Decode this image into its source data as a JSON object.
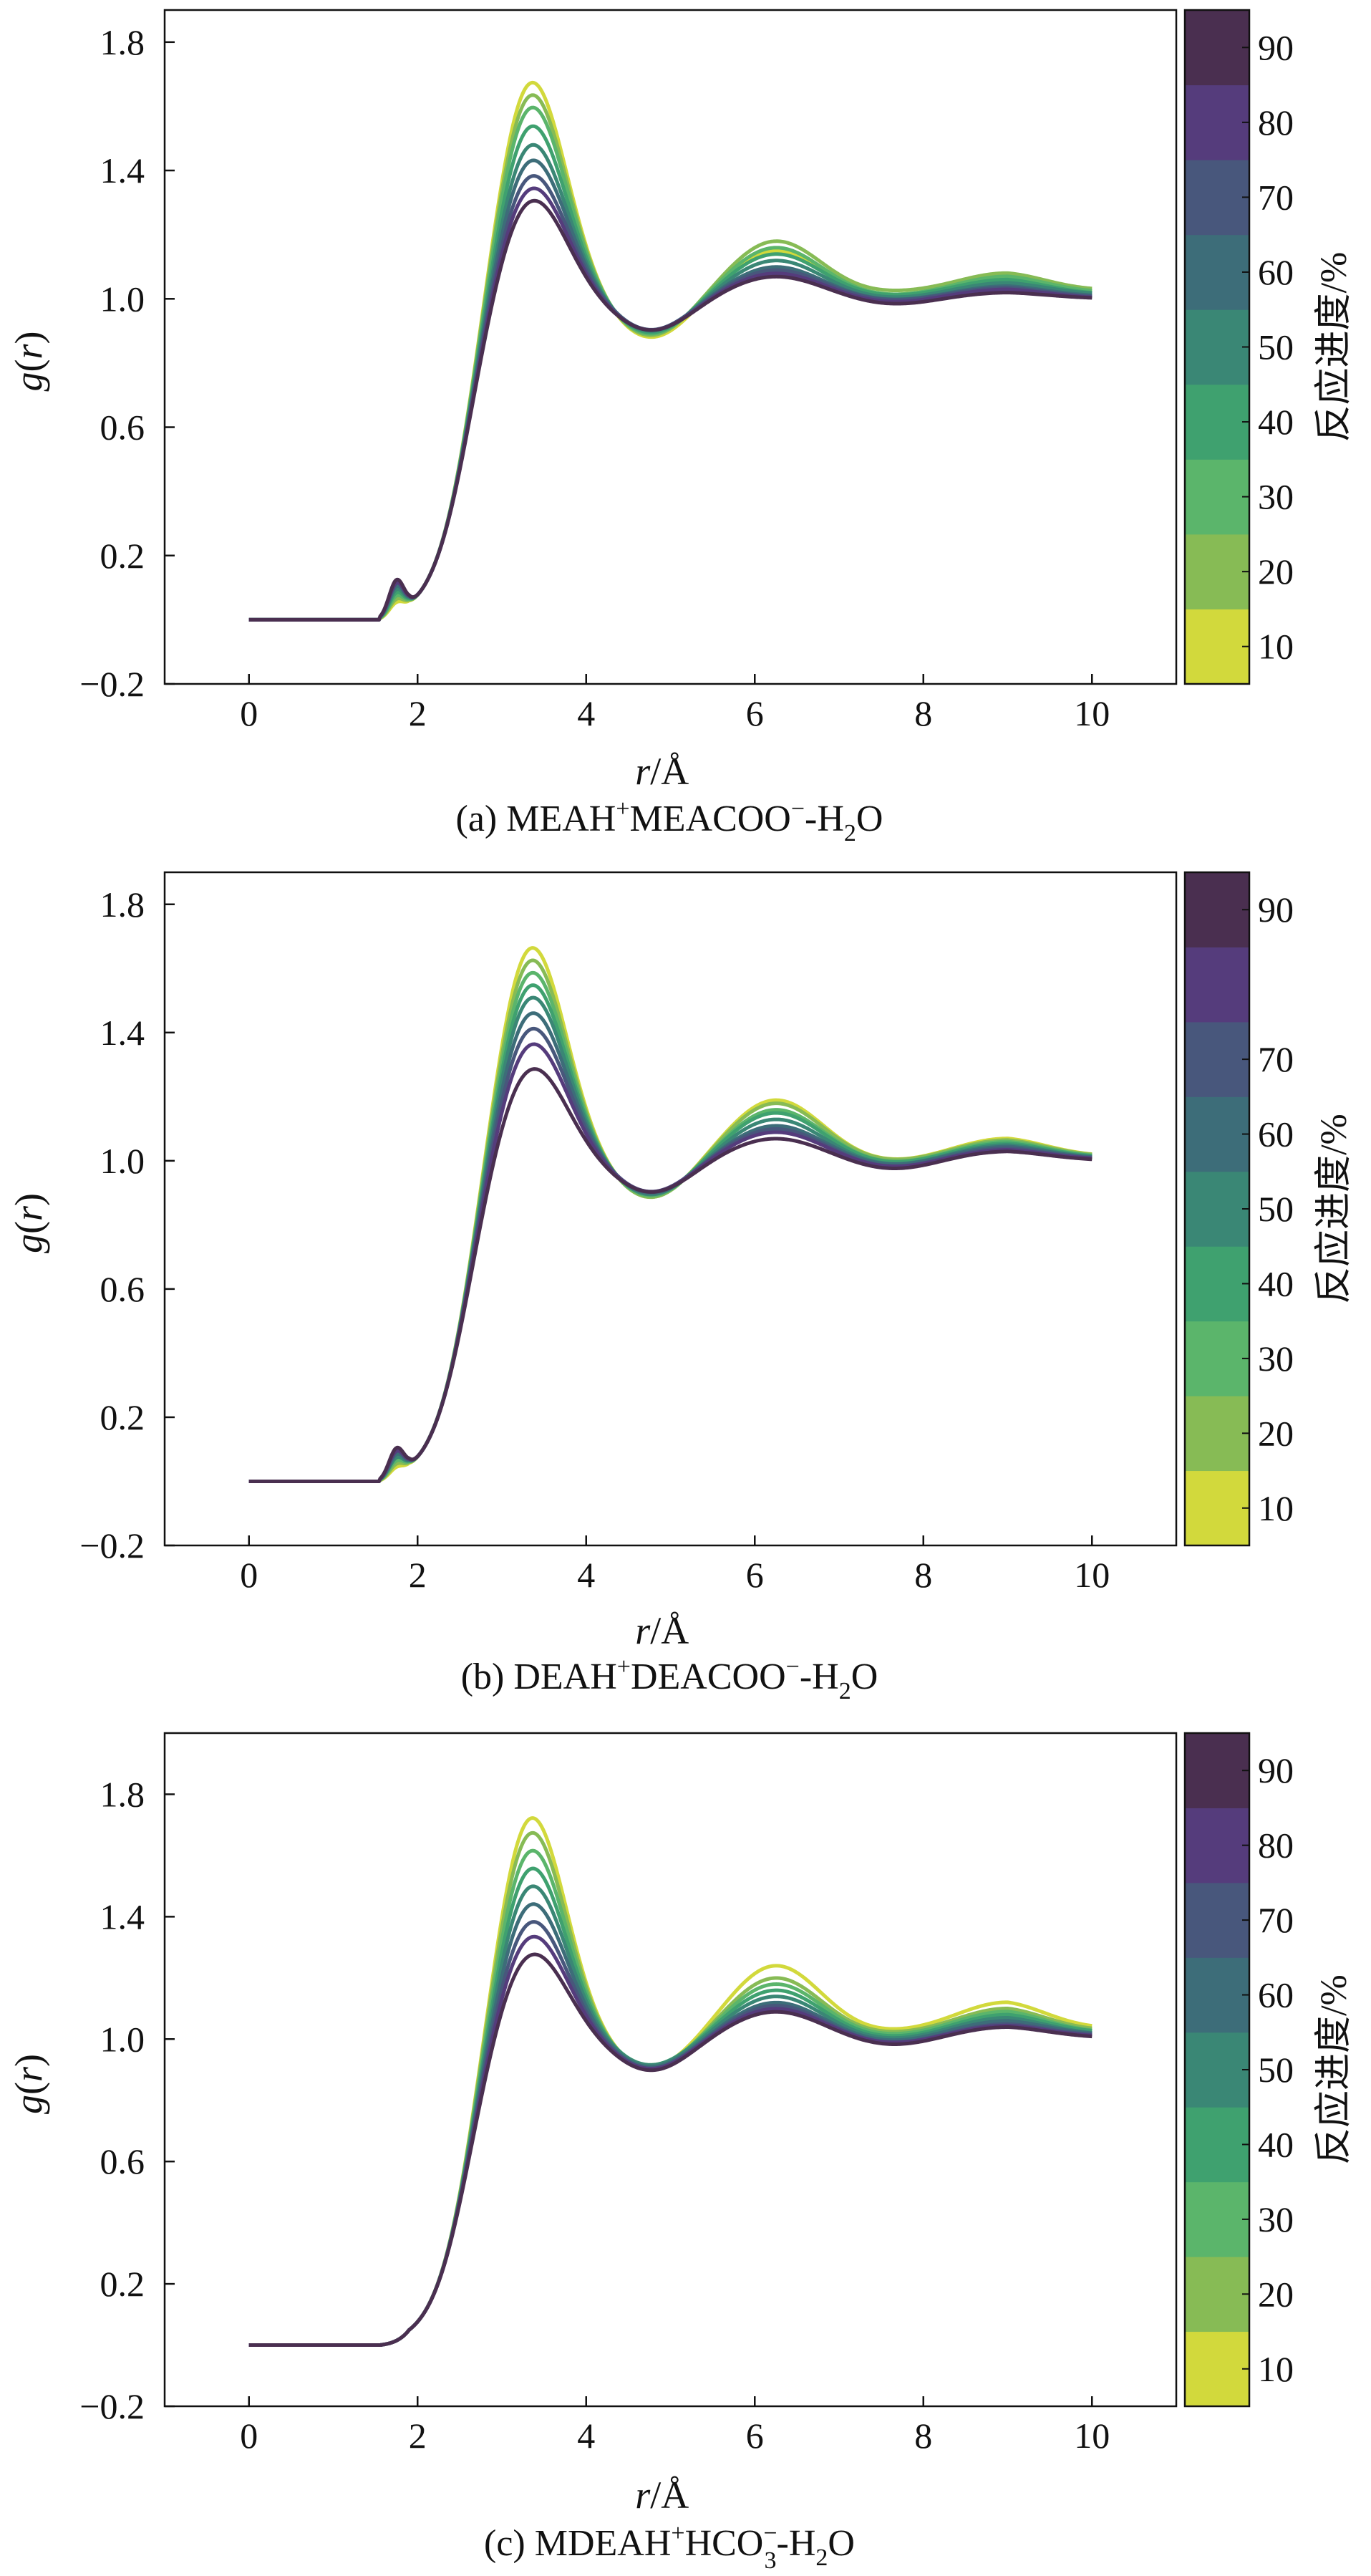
{
  "figure": {
    "panels": [
      {
        "id": "a",
        "caption_prefix": "(a) MEAH",
        "caption_sup1": "+",
        "caption_mid": "MEACOO",
        "caption_sup2": "−",
        "caption_mid2": "-H",
        "caption_sub": "2",
        "caption_tail": "O",
        "caption_sub2": ""
      },
      {
        "id": "b",
        "caption_prefix": "(b) DEAH",
        "caption_sup1": "+",
        "caption_mid": "DEACOO",
        "caption_sup2": "−",
        "caption_mid2": "-H",
        "caption_sub": "2",
        "caption_tail": "O",
        "caption_sub2": ""
      },
      {
        "id": "c",
        "caption_prefix": "(c) MDEAH",
        "caption_sup1": "+",
        "caption_mid": "HCO",
        "caption_sup2": "−",
        "caption_mid2": "-H",
        "caption_sub": "2",
        "caption_tail": "O",
        "caption_sub2": "3"
      }
    ]
  },
  "chart_data": [
    {
      "type": "line",
      "panel": "a",
      "title": "(a) MEAH⁺MEACOO⁻-H₂O",
      "xlabel_italic": "r",
      "xlabel_unit": "/Å",
      "ylabel_italic_g": "g",
      "ylabel_open": "(",
      "ylabel_italic_r": "r",
      "ylabel_close": ")",
      "xlim": [
        -1,
        11
      ],
      "ylim": [
        -0.2,
        1.9
      ],
      "xticks": [
        0,
        2,
        4,
        6,
        8,
        10
      ],
      "xtick_labels": [
        "0",
        "2",
        "4",
        "6",
        "8",
        "10"
      ],
      "yticks": [
        -0.2,
        0.2,
        0.6,
        1.0,
        1.4,
        1.8
      ],
      "ytick_labels": [
        "−0.2",
        "0.2",
        "0.6",
        "1.0",
        "1.4",
        "1.8"
      ],
      "colorbar": {
        "label": "反应进度/%",
        "range": [
          5,
          95
        ],
        "ticks": [
          10,
          20,
          30,
          40,
          50,
          60,
          70,
          80,
          90
        ],
        "tick_labels": [
          "10",
          "20",
          "30",
          "40",
          "50",
          "60",
          "70",
          "80",
          "90"
        ],
        "colors": [
          "#d2d93c",
          "#87bb55",
          "#5bb56b",
          "#3fa16f",
          "#3a8775",
          "#3d6d79",
          "#48577c",
          "#553c7c",
          "#4a2f50"
        ]
      },
      "series": [
        {
          "name": "10",
          "color": "#d2d93c",
          "peak1": 1.72,
          "dip1": 0.875,
          "peak2": 1.15,
          "dip2": 1.0,
          "peak3": 1.07,
          "end": 1.03,
          "shoulder": 0.04
        },
        {
          "name": "20",
          "color": "#87bb55",
          "peak1": 1.68,
          "dip1": 0.88,
          "peak2": 1.18,
          "dip2": 1.01,
          "peak3": 1.08,
          "end": 1.04,
          "shoulder": 0.05
        },
        {
          "name": "30",
          "color": "#5bb56b",
          "peak1": 1.64,
          "dip1": 0.885,
          "peak2": 1.16,
          "dip2": 1.0,
          "peak3": 1.07,
          "end": 1.03,
          "shoulder": 0.06
        },
        {
          "name": "40",
          "color": "#3fa16f",
          "peak1": 1.58,
          "dip1": 0.89,
          "peak2": 1.14,
          "dip2": 1.0,
          "peak3": 1.06,
          "end": 1.02,
          "shoulder": 0.07
        },
        {
          "name": "50",
          "color": "#3a8775",
          "peak1": 1.52,
          "dip1": 0.895,
          "peak2": 1.12,
          "dip2": 0.995,
          "peak3": 1.05,
          "end": 1.02,
          "shoulder": 0.08
        },
        {
          "name": "60",
          "color": "#3d6d79",
          "peak1": 1.47,
          "dip1": 0.9,
          "peak2": 1.1,
          "dip2": 0.99,
          "peak3": 1.04,
          "end": 1.01,
          "shoulder": 0.09
        },
        {
          "name": "70",
          "color": "#48577c",
          "peak1": 1.42,
          "dip1": 0.9,
          "peak2": 1.09,
          "dip2": 0.99,
          "peak3": 1.035,
          "end": 1.005,
          "shoulder": 0.1
        },
        {
          "name": "80",
          "color": "#553c7c",
          "peak1": 1.38,
          "dip1": 0.9,
          "peak2": 1.08,
          "dip2": 0.985,
          "peak3": 1.03,
          "end": 1.0,
          "shoulder": 0.1
        },
        {
          "name": "90",
          "color": "#4a2f50",
          "peak1": 1.34,
          "dip1": 0.9,
          "peak2": 1.07,
          "dip2": 0.98,
          "peak3": 1.02,
          "end": 1.0,
          "shoulder": 0.11
        }
      ]
    },
    {
      "type": "line",
      "panel": "b",
      "title": "(b) DEAH⁺DEACOO⁻-H₂O",
      "xlabel_italic": "r",
      "xlabel_unit": "/Å",
      "ylabel_italic_g": "g",
      "ylabel_open": "(",
      "ylabel_italic_r": "r",
      "ylabel_close": ")",
      "xlim": [
        -1,
        11
      ],
      "ylim": [
        -0.2,
        1.9
      ],
      "xticks": [
        0,
        2,
        4,
        6,
        8,
        10
      ],
      "xtick_labels": [
        "0",
        "2",
        "4",
        "6",
        "8",
        "10"
      ],
      "yticks": [
        -0.2,
        0.2,
        0.6,
        1.0,
        1.4,
        1.8
      ],
      "ytick_labels": [
        "−0.2",
        "0.2",
        "0.6",
        "1.0",
        "1.4",
        "1.8"
      ],
      "colorbar": {
        "label": "反应进度/%",
        "range": [
          5,
          95
        ],
        "ticks": [
          10,
          20,
          30,
          40,
          50,
          60,
          70,
          90
        ],
        "tick_labels": [
          "10",
          "20",
          "30",
          "40",
          "50",
          "60",
          "70",
          "90"
        ],
        "colors": [
          "#d2d93c",
          "#87bb55",
          "#5bb56b",
          "#3fa16f",
          "#3a8775",
          "#3d6d79",
          "#48577c",
          "#553c7c",
          "#4a2f50"
        ]
      },
      "series": [
        {
          "name": "10",
          "color": "#d2d93c",
          "peak1": 1.71,
          "dip1": 0.88,
          "peak2": 1.19,
          "dip2": 0.99,
          "peak3": 1.07,
          "end": 1.02,
          "shoulder": 0.03
        },
        {
          "name": "20",
          "color": "#87bb55",
          "peak1": 1.67,
          "dip1": 0.88,
          "peak2": 1.18,
          "dip2": 0.99,
          "peak3": 1.065,
          "end": 1.02,
          "shoulder": 0.04
        },
        {
          "name": "30",
          "color": "#5bb56b",
          "peak1": 1.63,
          "dip1": 0.885,
          "peak2": 1.16,
          "dip2": 0.985,
          "peak3": 1.06,
          "end": 1.015,
          "shoulder": 0.05
        },
        {
          "name": "40",
          "color": "#3fa16f",
          "peak1": 1.59,
          "dip1": 0.89,
          "peak2": 1.15,
          "dip2": 0.985,
          "peak3": 1.055,
          "end": 1.015,
          "shoulder": 0.06
        },
        {
          "name": "50",
          "color": "#3a8775",
          "peak1": 1.55,
          "dip1": 0.89,
          "peak2": 1.13,
          "dip2": 0.98,
          "peak3": 1.05,
          "end": 1.01,
          "shoulder": 0.06
        },
        {
          "name": "60",
          "color": "#3d6d79",
          "peak1": 1.5,
          "dip1": 0.895,
          "peak2": 1.11,
          "dip2": 0.98,
          "peak3": 1.045,
          "end": 1.01,
          "shoulder": 0.07
        },
        {
          "name": "70",
          "color": "#48577c",
          "peak1": 1.45,
          "dip1": 0.9,
          "peak2": 1.1,
          "dip2": 0.975,
          "peak3": 1.04,
          "end": 1.005,
          "shoulder": 0.08
        },
        {
          "name": "80",
          "color": "#553c7c",
          "peak1": 1.4,
          "dip1": 0.9,
          "peak2": 1.09,
          "dip2": 0.975,
          "peak3": 1.035,
          "end": 1.005,
          "shoulder": 0.08
        },
        {
          "name": "90",
          "color": "#4a2f50",
          "peak1": 1.32,
          "dip1": 0.9,
          "peak2": 1.07,
          "dip2": 0.97,
          "peak3": 1.03,
          "end": 1.0,
          "shoulder": 0.09
        }
      ]
    },
    {
      "type": "line",
      "panel": "c",
      "title": "(c) MDEAH⁺HCO₃⁻-H₂O",
      "xlabel_italic": "r",
      "xlabel_unit": "/Å",
      "ylabel_italic_g": "g",
      "ylabel_open": "(",
      "ylabel_italic_r": "r",
      "ylabel_close": ")",
      "xlim": [
        -1,
        11
      ],
      "ylim": [
        -0.2,
        2.0
      ],
      "xticks": [
        0,
        2,
        4,
        6,
        8,
        10
      ],
      "xtick_labels": [
        "0",
        "2",
        "4",
        "6",
        "8",
        "10"
      ],
      "yticks": [
        -0.2,
        0.2,
        0.6,
        1.0,
        1.4,
        1.8
      ],
      "ytick_labels": [
        "−0.2",
        "0.2",
        "0.6",
        "1.0",
        "1.4",
        "1.8"
      ],
      "colorbar": {
        "label": "反应进度/%",
        "range": [
          5,
          95
        ],
        "ticks": [
          10,
          20,
          30,
          40,
          50,
          60,
          70,
          80,
          90
        ],
        "tick_labels": [
          "10",
          "20",
          "30",
          "40",
          "50",
          "60",
          "70",
          "80",
          "90"
        ],
        "colors": [
          "#d2d93c",
          "#87bb55",
          "#5bb56b",
          "#3fa16f",
          "#3a8775",
          "#3d6d79",
          "#48577c",
          "#553c7c",
          "#4a2f50"
        ]
      },
      "series": [
        {
          "name": "10",
          "color": "#d2d93c",
          "peak1": 1.77,
          "dip1": 0.9,
          "peak2": 1.24,
          "dip2": 1.01,
          "peak3": 1.12,
          "end": 1.05,
          "shoulder": 0.0
        },
        {
          "name": "20",
          "color": "#87bb55",
          "peak1": 1.72,
          "dip1": 0.9,
          "peak2": 1.2,
          "dip2": 1.005,
          "peak3": 1.1,
          "end": 1.04,
          "shoulder": 0.0
        },
        {
          "name": "30",
          "color": "#5bb56b",
          "peak1": 1.66,
          "dip1": 0.905,
          "peak2": 1.18,
          "dip2": 1.0,
          "peak3": 1.09,
          "end": 1.03,
          "shoulder": 0.0
        },
        {
          "name": "40",
          "color": "#3fa16f",
          "peak1": 1.6,
          "dip1": 0.91,
          "peak2": 1.16,
          "dip2": 0.995,
          "peak3": 1.08,
          "end": 1.03,
          "shoulder": 0.0
        },
        {
          "name": "50",
          "color": "#3a8775",
          "peak1": 1.54,
          "dip1": 0.91,
          "peak2": 1.14,
          "dip2": 0.99,
          "peak3": 1.07,
          "end": 1.02,
          "shoulder": 0.0
        },
        {
          "name": "60",
          "color": "#3d6d79",
          "peak1": 1.48,
          "dip1": 0.905,
          "peak2": 1.12,
          "dip2": 0.985,
          "peak3": 1.06,
          "end": 1.02,
          "shoulder": 0.0
        },
        {
          "name": "70",
          "color": "#48577c",
          "peak1": 1.42,
          "dip1": 0.9,
          "peak2": 1.11,
          "dip2": 0.98,
          "peak3": 1.05,
          "end": 1.015,
          "shoulder": 0.0
        },
        {
          "name": "80",
          "color": "#553c7c",
          "peak1": 1.37,
          "dip1": 0.9,
          "peak2": 1.1,
          "dip2": 0.98,
          "peak3": 1.045,
          "end": 1.01,
          "shoulder": 0.0
        },
        {
          "name": "90",
          "color": "#4a2f50",
          "peak1": 1.31,
          "dip1": 0.895,
          "peak2": 1.09,
          "dip2": 0.975,
          "peak3": 1.04,
          "end": 1.005,
          "shoulder": 0.0
        }
      ]
    }
  ]
}
